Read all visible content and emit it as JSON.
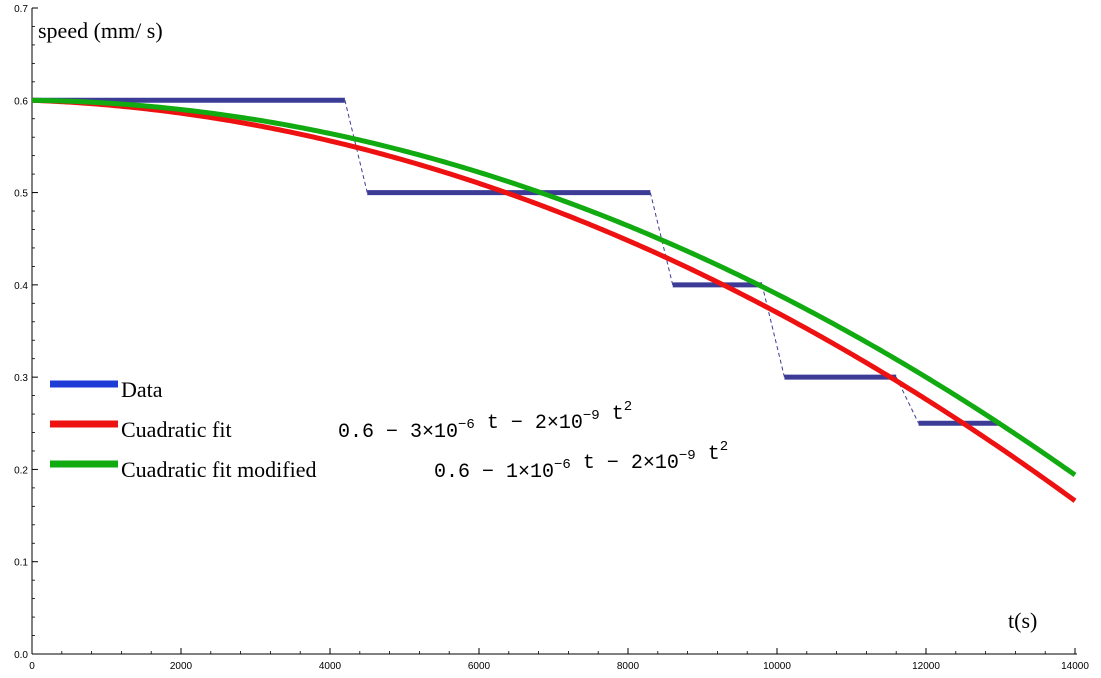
{
  "chart_data": {
    "type": "line",
    "title": "",
    "xlabel": "t(s)",
    "ylabel": "speed (mm/ s)",
    "xlim": [
      0,
      14000
    ],
    "ylim": [
      0,
      0.7
    ],
    "x_ticks": [
      0,
      2000,
      4000,
      6000,
      8000,
      10000,
      12000,
      14000
    ],
    "x_tick_labels": [
      "0",
      "2000",
      "4000",
      "6000",
      "8000",
      "10000",
      "12000",
      "14000"
    ],
    "y_ticks": [
      0.0,
      0.1,
      0.2,
      0.3,
      0.4,
      0.5,
      0.6,
      0.7
    ],
    "y_tick_labels": [
      "0.0",
      "0.1",
      "0.2",
      "0.3",
      "0.4",
      "0.5",
      "0.6",
      "0.7"
    ],
    "grid": false,
    "legend_position": "left-middle",
    "series": [
      {
        "name": "Data",
        "kind": "step",
        "color": "#3c3c96",
        "legend_color": "#1f3bd6",
        "steps": [
          {
            "x_start": 0,
            "x_end": 4200,
            "y": 0.6
          },
          {
            "x_start": 4500,
            "x_end": 8300,
            "y": 0.5
          },
          {
            "x_start": 8600,
            "x_end": 9800,
            "y": 0.4
          },
          {
            "x_start": 10100,
            "x_end": 11600,
            "y": 0.3
          },
          {
            "x_start": 11900,
            "x_end": 13000,
            "y": 0.25
          }
        ]
      },
      {
        "name": "Cuadratic fit",
        "kind": "function",
        "color": "#ee1111",
        "coefficients": {
          "c0": 0.6,
          "c1": -3e-06,
          "c2": -2e-09
        },
        "formula": {
          "const": "0.6 − 3×10",
          "exp1": "−6",
          "mid": " t − 2×10",
          "exp2": "−9",
          "tail": " t",
          "exp3": "2"
        }
      },
      {
        "name": "Cuadratic fit modified",
        "kind": "function",
        "color": "#11aa11",
        "coefficients": {
          "c0": 0.6,
          "c1": -1e-06,
          "c2": -2e-09
        },
        "formula": {
          "const": "0.6 − 1×10",
          "exp1": "−6",
          "mid": " t − 2×10",
          "exp2": "−9",
          "tail": " t",
          "exp3": "2"
        }
      }
    ]
  }
}
